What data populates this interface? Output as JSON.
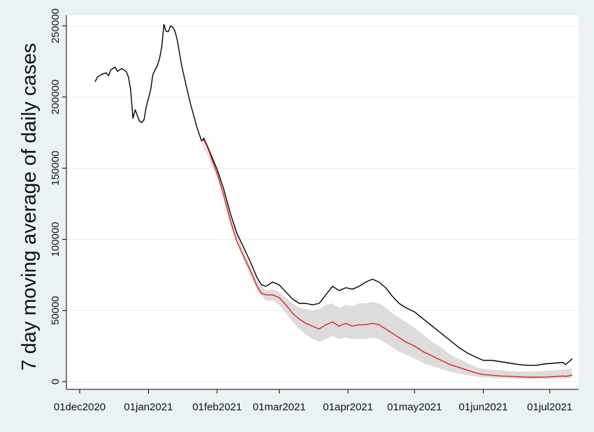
{
  "colors": {
    "figure_background": "#eaf2f3",
    "plot_background": "#ffffff",
    "gridline": "#e8eef0",
    "axis": "#000000",
    "observed_line": "#000000",
    "modelled_line": "#e0231b",
    "interval_band": "#dcdcdc"
  },
  "chart_data": {
    "type": "line",
    "title": "",
    "xlabel": "",
    "ylabel": "7 day moving average of daily cases",
    "xlim": [
      "2020-11-25",
      "2021-07-14"
    ],
    "ylim": [
      0,
      255000
    ],
    "grid": true,
    "x_ticks": [
      "2020-12-01",
      "2021-01-01",
      "2021-02-01",
      "2021-03-01",
      "2021-04-01",
      "2021-05-01",
      "2021-06-01",
      "2021-07-01"
    ],
    "x_tick_labels": [
      "01dec2020",
      "01jan2021",
      "01feb2021",
      "01mar2021",
      "01apr2021",
      "01may2021",
      "01jun2021",
      "01jul2021"
    ],
    "y_ticks": [
      0,
      50000,
      100000,
      150000,
      200000,
      250000
    ],
    "y_tick_labels": [
      "0",
      "50000",
      "100000",
      "150000",
      "200000",
      "250000"
    ],
    "series": [
      {
        "style": "line",
        "color": "#000000",
        "points": [
          [
            "2020-12-08",
            211000
          ],
          [
            "2020-12-09",
            214000
          ],
          [
            "2020-12-11",
            216000
          ],
          [
            "2020-12-13",
            217000
          ],
          [
            "2020-12-14",
            215000
          ],
          [
            "2020-12-15",
            219000
          ],
          [
            "2020-12-17",
            221000
          ],
          [
            "2020-12-18",
            218000
          ],
          [
            "2020-12-20",
            220000
          ],
          [
            "2020-12-22",
            218000
          ],
          [
            "2020-12-23",
            214000
          ],
          [
            "2020-12-24",
            205000
          ],
          [
            "2020-12-25",
            185000
          ],
          [
            "2020-12-26",
            191000
          ],
          [
            "2020-12-27",
            187000
          ],
          [
            "2020-12-28",
            183000
          ],
          [
            "2020-12-29",
            182000
          ],
          [
            "2020-12-30",
            184000
          ],
          [
            "2020-12-31",
            193000
          ],
          [
            "2021-01-02",
            205000
          ],
          [
            "2021-01-03",
            216000
          ],
          [
            "2021-01-05",
            222000
          ],
          [
            "2021-01-06",
            227000
          ],
          [
            "2021-01-07",
            235000
          ],
          [
            "2021-01-08",
            251000
          ],
          [
            "2021-01-09",
            246000
          ],
          [
            "2021-01-10",
            246000
          ],
          [
            "2021-01-11",
            250000
          ],
          [
            "2021-01-12",
            249000
          ],
          [
            "2021-01-13",
            246000
          ],
          [
            "2021-01-14",
            240000
          ],
          [
            "2021-01-16",
            222000
          ],
          [
            "2021-01-18",
            208000
          ],
          [
            "2021-01-20",
            195000
          ],
          [
            "2021-01-23",
            178000
          ],
          [
            "2021-01-25",
            169000
          ],
          [
            "2021-01-26",
            171000
          ],
          [
            "2021-01-28",
            164000
          ],
          [
            "2021-02-01",
            149000
          ],
          [
            "2021-02-04",
            135000
          ],
          [
            "2021-02-07",
            118000
          ],
          [
            "2021-02-10",
            104000
          ],
          [
            "2021-02-13",
            94000
          ],
          [
            "2021-02-16",
            84000
          ],
          [
            "2021-02-19",
            73000
          ],
          [
            "2021-02-21",
            68000
          ],
          [
            "2021-02-23",
            67000
          ],
          [
            "2021-02-26",
            70000
          ],
          [
            "2021-03-01",
            68000
          ],
          [
            "2021-03-04",
            63000
          ],
          [
            "2021-03-07",
            58000
          ],
          [
            "2021-03-10",
            55000
          ],
          [
            "2021-03-13",
            55000
          ],
          [
            "2021-03-16",
            54000
          ],
          [
            "2021-03-19",
            55000
          ],
          [
            "2021-03-22",
            61000
          ],
          [
            "2021-03-25",
            67000
          ],
          [
            "2021-03-28",
            64000
          ],
          [
            "2021-03-31",
            66000
          ],
          [
            "2021-04-03",
            65000
          ],
          [
            "2021-04-06",
            67000
          ],
          [
            "2021-04-09",
            70000
          ],
          [
            "2021-04-12",
            72000
          ],
          [
            "2021-04-15",
            70000
          ],
          [
            "2021-04-18",
            66000
          ],
          [
            "2021-04-21",
            60000
          ],
          [
            "2021-04-24",
            55000
          ],
          [
            "2021-04-27",
            52000
          ],
          [
            "2021-05-01",
            49000
          ],
          [
            "2021-05-05",
            44000
          ],
          [
            "2021-05-09",
            39000
          ],
          [
            "2021-05-13",
            34000
          ],
          [
            "2021-05-17",
            29000
          ],
          [
            "2021-05-21",
            24000
          ],
          [
            "2021-05-25",
            20000
          ],
          [
            "2021-05-29",
            17000
          ],
          [
            "2021-06-01",
            15000
          ],
          [
            "2021-06-05",
            15000
          ],
          [
            "2021-06-09",
            14000
          ],
          [
            "2021-06-13",
            13000
          ],
          [
            "2021-06-17",
            12000
          ],
          [
            "2021-06-21",
            11500
          ],
          [
            "2021-06-25",
            11500
          ],
          [
            "2021-06-29",
            12500
          ],
          [
            "2021-07-03",
            13000
          ],
          [
            "2021-07-07",
            13500
          ],
          [
            "2021-07-08",
            12000
          ],
          [
            "2021-07-10",
            14500
          ],
          [
            "2021-07-11",
            16000
          ]
        ]
      },
      {
        "style": "line",
        "color": "#e0231b",
        "points": [
          [
            "2021-01-25",
            169000
          ],
          [
            "2021-01-26",
            170000
          ],
          [
            "2021-01-28",
            163000
          ],
          [
            "2021-02-01",
            146000
          ],
          [
            "2021-02-04",
            131000
          ],
          [
            "2021-02-07",
            113000
          ],
          [
            "2021-02-10",
            98000
          ],
          [
            "2021-02-13",
            88000
          ],
          [
            "2021-02-16",
            78000
          ],
          [
            "2021-02-19",
            67000
          ],
          [
            "2021-02-21",
            62000
          ],
          [
            "2021-02-23",
            61000
          ],
          [
            "2021-02-26",
            61000
          ],
          [
            "2021-03-01",
            59000
          ],
          [
            "2021-03-04",
            54000
          ],
          [
            "2021-03-07",
            48000
          ],
          [
            "2021-03-10",
            44000
          ],
          [
            "2021-03-13",
            41000
          ],
          [
            "2021-03-16",
            39000
          ],
          [
            "2021-03-19",
            37000
          ],
          [
            "2021-03-22",
            40000
          ],
          [
            "2021-03-25",
            42000
          ],
          [
            "2021-03-28",
            39000
          ],
          [
            "2021-03-31",
            41000
          ],
          [
            "2021-04-03",
            39000
          ],
          [
            "2021-04-06",
            40000
          ],
          [
            "2021-04-09",
            40000
          ],
          [
            "2021-04-12",
            41000
          ],
          [
            "2021-04-15",
            40000
          ],
          [
            "2021-04-18",
            37000
          ],
          [
            "2021-04-21",
            34000
          ],
          [
            "2021-04-24",
            31000
          ],
          [
            "2021-04-27",
            28000
          ],
          [
            "2021-05-01",
            25000
          ],
          [
            "2021-05-05",
            21000
          ],
          [
            "2021-05-09",
            18000
          ],
          [
            "2021-05-13",
            15000
          ],
          [
            "2021-05-17",
            12000
          ],
          [
            "2021-05-21",
            10000
          ],
          [
            "2021-05-25",
            8000
          ],
          [
            "2021-05-29",
            6000
          ],
          [
            "2021-06-01",
            5000
          ],
          [
            "2021-06-05",
            4500
          ],
          [
            "2021-06-09",
            4000
          ],
          [
            "2021-06-13",
            3800
          ],
          [
            "2021-06-17",
            3500
          ],
          [
            "2021-06-21",
            3200
          ],
          [
            "2021-06-25",
            3200
          ],
          [
            "2021-06-29",
            3300
          ],
          [
            "2021-07-03",
            3600
          ],
          [
            "2021-07-07",
            4000
          ],
          [
            "2021-07-08",
            3700
          ],
          [
            "2021-07-10",
            4200
          ],
          [
            "2021-07-11",
            4800
          ]
        ]
      }
    ],
    "band": {
      "style": "area",
      "color": "#dcdcdc",
      "points": [
        [
          "2021-01-25",
          168000,
          170000
        ],
        [
          "2021-02-01",
          144000,
          148000
        ],
        [
          "2021-02-07",
          110000,
          116000
        ],
        [
          "2021-02-13",
          85000,
          91000
        ],
        [
          "2021-02-19",
          64000,
          70000
        ],
        [
          "2021-02-23",
          57000,
          64000
        ],
        [
          "2021-02-26",
          57000,
          65000
        ],
        [
          "2021-03-01",
          54000,
          63000
        ],
        [
          "2021-03-04",
          48000,
          59000
        ],
        [
          "2021-03-07",
          42000,
          55000
        ],
        [
          "2021-03-10",
          37000,
          52000
        ],
        [
          "2021-03-13",
          33000,
          51000
        ],
        [
          "2021-03-16",
          30000,
          50000
        ],
        [
          "2021-03-19",
          28000,
          51000
        ],
        [
          "2021-03-22",
          30000,
          54000
        ],
        [
          "2021-03-25",
          32000,
          55000
        ],
        [
          "2021-03-28",
          30000,
          52000
        ],
        [
          "2021-03-31",
          31000,
          54000
        ],
        [
          "2021-04-03",
          30000,
          53000
        ],
        [
          "2021-04-06",
          30000,
          55000
        ],
        [
          "2021-04-09",
          30000,
          55000
        ],
        [
          "2021-04-12",
          31000,
          56000
        ],
        [
          "2021-04-15",
          30000,
          55000
        ],
        [
          "2021-04-18",
          27000,
          52000
        ],
        [
          "2021-04-21",
          24000,
          48000
        ],
        [
          "2021-04-24",
          21000,
          45000
        ],
        [
          "2021-04-27",
          19000,
          42000
        ],
        [
          "2021-05-01",
          16000,
          38000
        ],
        [
          "2021-05-05",
          13000,
          33000
        ],
        [
          "2021-05-09",
          11000,
          28000
        ],
        [
          "2021-05-13",
          9000,
          24000
        ],
        [
          "2021-05-17",
          7000,
          19000
        ],
        [
          "2021-05-21",
          5500,
          16000
        ],
        [
          "2021-05-25",
          4500,
          13000
        ],
        [
          "2021-05-29",
          3500,
          10000
        ],
        [
          "2021-06-01",
          3000,
          9000
        ],
        [
          "2021-06-05",
          2600,
          8500
        ],
        [
          "2021-06-09",
          2300,
          8000
        ],
        [
          "2021-06-13",
          2100,
          7500
        ],
        [
          "2021-06-17",
          2000,
          7000
        ],
        [
          "2021-06-21",
          1800,
          7000
        ],
        [
          "2021-06-25",
          1800,
          7200
        ],
        [
          "2021-06-29",
          1900,
          7600
        ],
        [
          "2021-07-03",
          2000,
          8000
        ],
        [
          "2021-07-07",
          2200,
          8600
        ],
        [
          "2021-07-11",
          2600,
          9400
        ]
      ]
    }
  }
}
